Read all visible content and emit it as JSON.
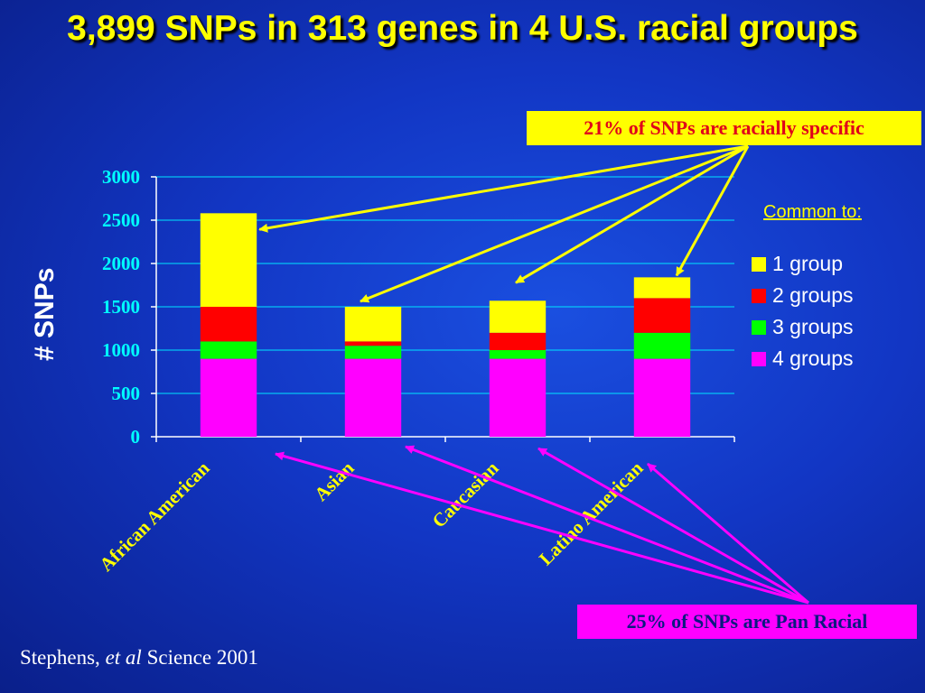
{
  "title": "3,899 SNPs in 313 genes in 4 U.S. racial groups",
  "callout_specific": "21% of SNPs are racially specific",
  "callout_pan": "25% of SNPs are Pan Racial",
  "citation": {
    "author": "Stephens, ",
    "etal": "et al",
    "rest": " Science 2001"
  },
  "colors": {
    "background": "#1236c4",
    "title": "#ffff00",
    "axis_ticks": "#00ffff",
    "category_labels": "#ffff00",
    "arrow_specific": "#ffff00",
    "arrow_pan": "#ff00ff"
  },
  "chart_data": {
    "type": "bar",
    "stacked": true,
    "categories": [
      "African American",
      "Asian",
      "Caucasian",
      "Latino American"
    ],
    "series": [
      {
        "name": "4 groups",
        "color": "#ff00ff",
        "values": [
          900,
          900,
          900,
          900
        ]
      },
      {
        "name": "3 groups",
        "color": "#00ff00",
        "values": [
          200,
          150,
          100,
          300
        ]
      },
      {
        "name": "2 groups",
        "color": "#ff0000",
        "values": [
          400,
          50,
          200,
          400
        ]
      },
      {
        "name": "1 group",
        "color": "#ffff00",
        "values": [
          1080,
          400,
          370,
          240
        ]
      }
    ],
    "ylabel": "# SNPs",
    "ylim": [
      0,
      3000
    ],
    "yticks": [
      0,
      500,
      1000,
      1500,
      2000,
      2500,
      3000
    ],
    "grid": true,
    "legend_title": "Common to:",
    "legend_placement": "right",
    "legend_order": [
      "1 group",
      "2 groups",
      "3 groups",
      "4 groups"
    ]
  }
}
